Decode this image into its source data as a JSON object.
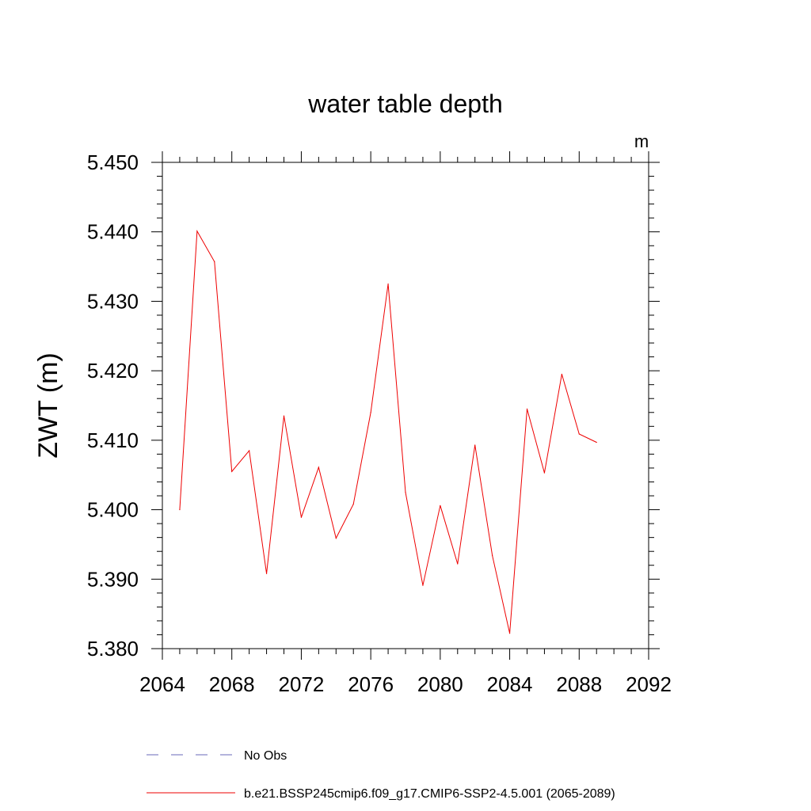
{
  "chart_data": {
    "type": "line",
    "title": "water table depth",
    "units_label": "m",
    "ylabel": "ZWT  (m)",
    "xlabel": "",
    "xlim": [
      2064,
      2092
    ],
    "ylim": [
      5.38,
      5.45
    ],
    "x_ticks": [
      "2064",
      "2068",
      "2072",
      "2076",
      "2080",
      "2084",
      "2088",
      "2092"
    ],
    "y_ticks": [
      "5.380",
      "5.390",
      "5.400",
      "5.410",
      "5.420",
      "5.430",
      "5.440",
      "5.450"
    ],
    "grid": false,
    "legend_position": "bottom",
    "legend": [
      {
        "label": "No Obs",
        "color": "#6a6ab8",
        "style": "dashed"
      },
      {
        "label": "b.e21.BSSP245cmip6.f09_g17.CMIP6-SSP2-4.5.001 (2065-2089)",
        "color": "#ee0000",
        "style": "solid"
      }
    ],
    "series": [
      {
        "name": "b.e21.BSSP245cmip6.f09_g17.CMIP6-SSP2-4.5.001 (2065-2089)",
        "color": "#ee0000",
        "x": [
          2065,
          2066,
          2067,
          2068,
          2069,
          2070,
          2071,
          2072,
          2073,
          2074,
          2075,
          2076,
          2077,
          2078,
          2079,
          2080,
          2081,
          2082,
          2083,
          2084,
          2085,
          2086,
          2087,
          2088,
          2089
        ],
        "y": [
          5.4,
          5.4401,
          5.4357,
          5.4055,
          5.4085,
          5.3908,
          5.4135,
          5.3989,
          5.4061,
          5.3959,
          5.4008,
          5.414,
          5.4325,
          5.4025,
          5.3891,
          5.4006,
          5.3922,
          5.4093,
          5.3934,
          5.3822,
          5.4145,
          5.4053,
          5.4195,
          5.4109,
          5.4097
        ]
      }
    ]
  }
}
